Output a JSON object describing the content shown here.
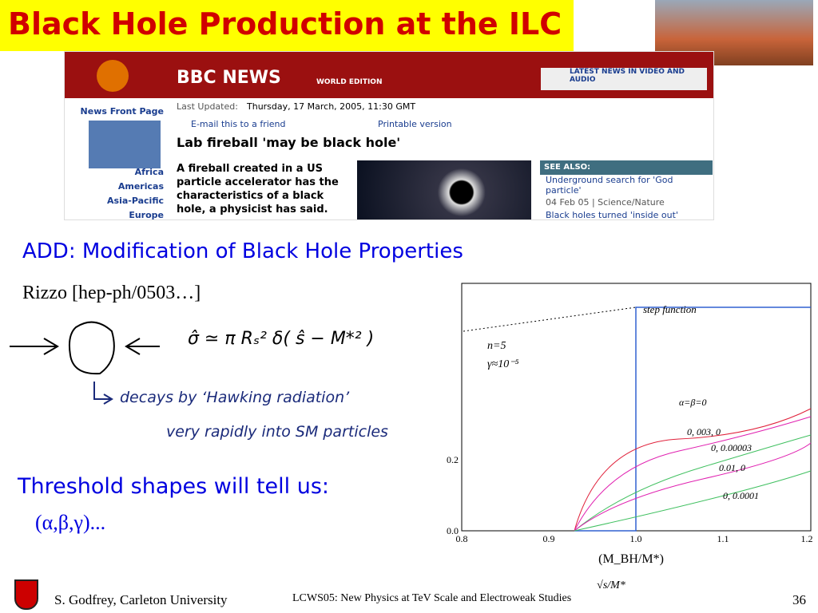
{
  "slide": {
    "title": "Black Hole Production at the ILC",
    "news": {
      "brand": "BBC NEWS",
      "edition": "WORLD EDITION",
      "video": "LATEST NEWS IN VIDEO AND AUDIO",
      "nav": [
        "News Front Page",
        "Africa",
        "Americas",
        "Asia-Pacific",
        "Europe"
      ],
      "updated_label": "Last Updated:",
      "updated": "Thursday, 17 March, 2005, 11:30 GMT",
      "email": "E-mail this to a friend",
      "print": "Printable version",
      "headline": "Lab fireball 'may be black hole'",
      "lead": "A fireball created in a US particle accelerator has the characteristics of a black hole, a physicist has said.",
      "see_also": "SEE ALSO:",
      "links": [
        "Underground search for 'God particle'",
        "Black holes turned 'inside out'"
      ],
      "link_meta": "04 Feb 05 | Science/Nature"
    },
    "subtitle": "ADD: Modification of Black Hole Properties",
    "reference": "Rizzo [hep-ph/0503…]",
    "notes": [
      "σ̂ ≃ π Rₛ² δ( ŝ − M*² )",
      "decays by ‘Hawking radiation’",
      "very rapidly into SM particles"
    ],
    "plot": {
      "step": "step function",
      "params": [
        "n=5",
        "γ≈10⁻⁵"
      ],
      "curves": [
        "α=β=0",
        "0, 003, 0",
        "0, 0.00003",
        "0.01, 0",
        "0, 0.0001"
      ],
      "xticks": [
        "0.8",
        "0.9",
        "1.0",
        "1.1",
        "1.2"
      ],
      "yticks": [
        "0.0",
        "0.2"
      ],
      "xlabel": "(M_BH/M*)",
      "xlabel2": "√s/M*"
    },
    "threshold": "Threshold shapes will tell us:",
    "params": "(α,β,γ)...",
    "footer": {
      "author": "S. Godfrey, Carleton University",
      "conference": "LCWS05: New Physics at TeV Scale and Electroweak Studies",
      "page": "36"
    }
  }
}
